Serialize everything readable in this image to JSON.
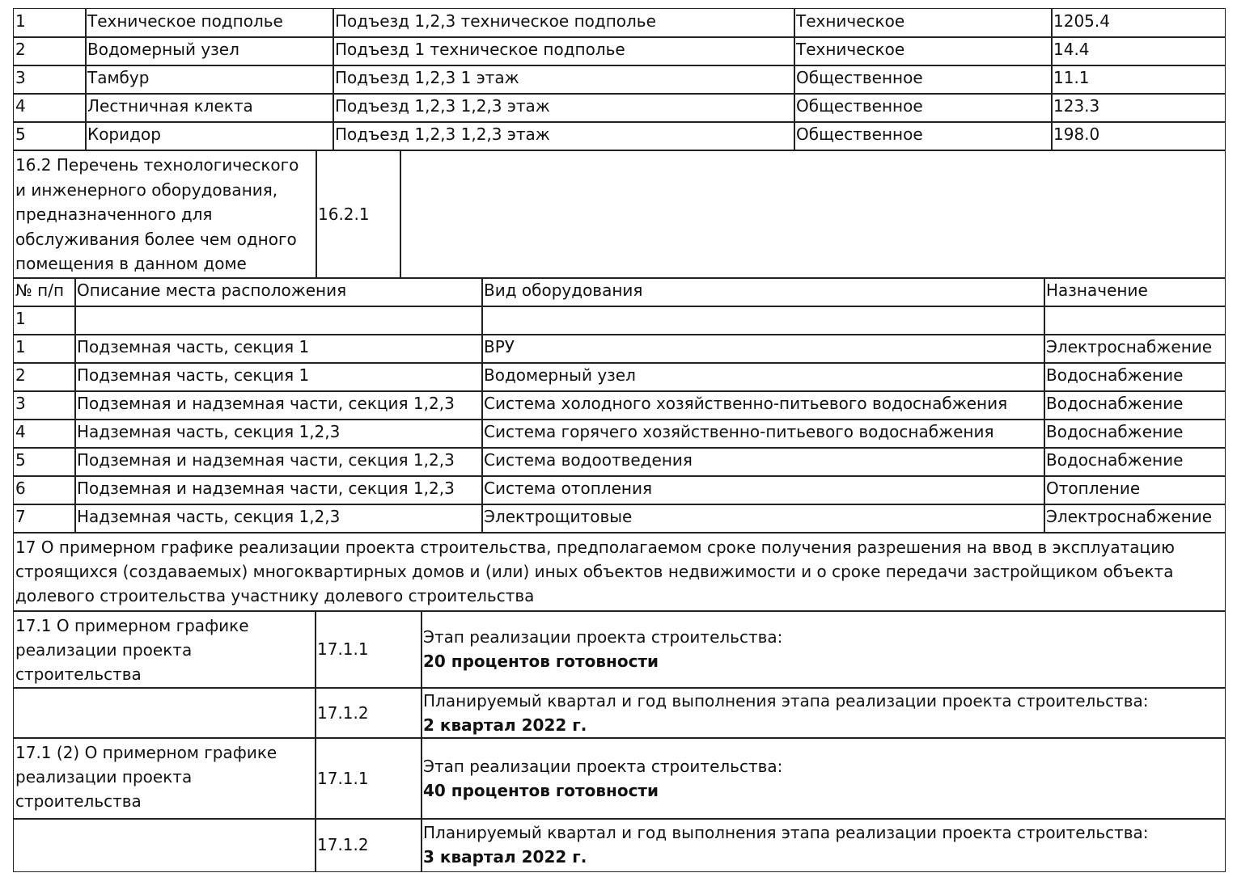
{
  "premises": [
    [
      "1",
      "Техническое подполье",
      "Подъезд 1,2,3 техническое подполье",
      "Техническое",
      "1205.4"
    ],
    [
      "2",
      "Водомерный узел",
      "Подъезд 1 техническое подполье",
      "Техническое",
      "14.4"
    ],
    [
      "3",
      "Тамбур",
      "Подъезд 1,2,3 1 этаж",
      "Общественное",
      "11.1"
    ],
    [
      "4",
      "Лестничная клекта",
      "Подъезд 1,2,3 1,2,3 этаж",
      "Общественное",
      "123.3"
    ],
    [
      "5",
      "Коридор",
      "Подъезд 1,2,3 1,2,3 этаж",
      "Общественное",
      "198.0"
    ]
  ],
  "s16_2": {
    "title_lines": [
      "16.2 Перечень технологического",
      "и инженерного оборудования,",
      "предназначенного для",
      "обслуживания более чем одного",
      "помещения в данном доме"
    ],
    "code": "16.2.1"
  },
  "equipment": {
    "headers": [
      "№ п/п",
      "Описание места расположения",
      "Вид оборудования",
      "Назначение"
    ],
    "rows": [
      [
        "1",
        "",
        "",
        ""
      ],
      [
        "1",
        "Подземная часть, секция 1",
        "ВРУ",
        "Электроснабжение"
      ],
      [
        "2",
        "Подземная часть, секция 1",
        "Водомерный узел",
        "Водоснабжение"
      ],
      [
        "3",
        "Подземная и надземная части, секция 1,2,3",
        "Система холодного хозяйственно-питьевого водоснабжения",
        "Водоснабжение"
      ],
      [
        "4",
        "Надземная часть, секция 1,2,3",
        "Система горячего хозяйственно-питьевого водоснабжения",
        "Водоснабжение"
      ],
      [
        "5",
        "Подземная и надземная части, секция 1,2,3",
        "Система водоотведения",
        "Водоснабжение"
      ],
      [
        "6",
        "Подземная и надземная части, секция 1,2,3",
        "Система отопления",
        "Отопление"
      ],
      [
        "7",
        "Надземная часть, секция 1,2,3",
        "Электрощитовые",
        "Электроснабжение"
      ]
    ]
  },
  "s17": {
    "title_lines": [
      "17 О примерном графике реализации проекта строительства, предполагаемом сроке получения разрешения на ввод в эксплуатацию",
      "строящихся (создаваемых) многоквартирных домов и (или) иных объектов недвижимости и о сроке передачи застройщиком объекта",
      "долевого строительства участнику долевого строительства"
    ],
    "blocks": [
      {
        "title_lines": [
          "17.1 О примерном графике",
          "реализации проекта",
          "строительства"
        ],
        "items": [
          {
            "code": "17.1.1",
            "label": "Этап реализации проекта строительства:",
            "value": "20 процентов готовности"
          },
          {
            "code": "17.1.2",
            "label": "Планируемый квартал и год выполнения этапа реализации проекта строительства:",
            "value": "2 квартал 2022 г."
          }
        ]
      },
      {
        "title_lines": [
          "17.1 (2) О примерном графике",
          "реализации проекта",
          "строительства"
        ],
        "items": [
          {
            "code": "17.1.1",
            "label": "Этап реализации проекта строительства:",
            "value": "40 процентов готовности"
          },
          {
            "code": "17.1.2",
            "label": "Планируемый квартал и год выполнения этапа реализации проекта строительства:",
            "value": "3 квартал 2022 г."
          }
        ]
      }
    ]
  }
}
